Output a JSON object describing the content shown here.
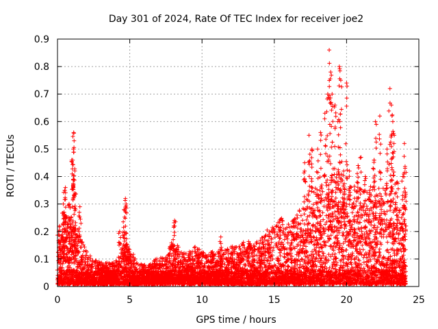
{
  "chart_data": {
    "type": "scatter",
    "title": "Day 301 of 2024, Rate Of TEC Index for receiver joe2",
    "xlabel": "GPS time / hours",
    "ylabel": "ROTI / TECUs",
    "xlim": [
      0,
      25
    ],
    "ylim": [
      0,
      0.9
    ],
    "xticks": [
      0,
      5,
      10,
      15,
      20,
      25
    ],
    "yticks": [
      0,
      0.1,
      0.2,
      0.3,
      0.4,
      0.5,
      0.6,
      0.7,
      0.8,
      0.9
    ],
    "xtick_labels": [
      "0",
      "5",
      "10",
      "15",
      "20",
      "25"
    ],
    "ytick_labels": [
      "0",
      "0.1",
      "0.2",
      "0.3",
      "0.4",
      "0.5",
      "0.6",
      "0.7",
      "0.8",
      "0.9"
    ],
    "grid": true,
    "marker": "plus",
    "color": "#ff0000",
    "envelope": {
      "description_x_hours": [
        0,
        0.5,
        1,
        1.5,
        2,
        2.5,
        3,
        3.5,
        4,
        4.5,
        5,
        5.5,
        6,
        6.5,
        7,
        7.5,
        8,
        8.5,
        9,
        9.5,
        10,
        10.5,
        11,
        11.5,
        12,
        12.5,
        13,
        13.5,
        14,
        14.5,
        15,
        15.5,
        16,
        16.5,
        17,
        17.5,
        18,
        18.5,
        19,
        19.5,
        20,
        20.5,
        21,
        21.5,
        22,
        22.5,
        23,
        23.5,
        24
      ],
      "typical_max": [
        0.2,
        0.25,
        0.25,
        0.2,
        0.12,
        0.09,
        0.08,
        0.08,
        0.08,
        0.14,
        0.14,
        0.08,
        0.07,
        0.08,
        0.1,
        0.1,
        0.18,
        0.12,
        0.12,
        0.14,
        0.12,
        0.12,
        0.12,
        0.12,
        0.14,
        0.14,
        0.16,
        0.15,
        0.16,
        0.2,
        0.22,
        0.24,
        0.22,
        0.25,
        0.3,
        0.35,
        0.36,
        0.4,
        0.4,
        0.42,
        0.36,
        0.36,
        0.35,
        0.36,
        0.35,
        0.35,
        0.35,
        0.32,
        0.28
      ]
    },
    "spikes": [
      {
        "x": 0.15,
        "y": 0.22
      },
      {
        "x": 0.4,
        "y": 0.3
      },
      {
        "x": 0.5,
        "y": 0.35
      },
      {
        "x": 0.55,
        "y": 0.36
      },
      {
        "x": 0.8,
        "y": 0.3
      },
      {
        "x": 1.05,
        "y": 0.46
      },
      {
        "x": 1.1,
        "y": 0.5
      },
      {
        "x": 1.12,
        "y": 0.56
      },
      {
        "x": 1.15,
        "y": 0.53
      },
      {
        "x": 1.2,
        "y": 0.34
      },
      {
        "x": 1.55,
        "y": 0.29
      },
      {
        "x": 4.3,
        "y": 0.2
      },
      {
        "x": 4.6,
        "y": 0.28
      },
      {
        "x": 4.7,
        "y": 0.32
      },
      {
        "x": 4.75,
        "y": 0.3
      },
      {
        "x": 8.1,
        "y": 0.24
      },
      {
        "x": 11.3,
        "y": 0.18
      },
      {
        "x": 17.1,
        "y": 0.45
      },
      {
        "x": 17.4,
        "y": 0.55
      },
      {
        "x": 17.6,
        "y": 0.5
      },
      {
        "x": 18.0,
        "y": 0.5
      },
      {
        "x": 18.2,
        "y": 0.56
      },
      {
        "x": 18.5,
        "y": 0.63
      },
      {
        "x": 18.7,
        "y": 0.7
      },
      {
        "x": 18.8,
        "y": 0.86
      },
      {
        "x": 18.9,
        "y": 0.78
      },
      {
        "x": 19.0,
        "y": 0.7
      },
      {
        "x": 19.2,
        "y": 0.66
      },
      {
        "x": 19.4,
        "y": 0.6
      },
      {
        "x": 19.5,
        "y": 0.8
      },
      {
        "x": 19.6,
        "y": 0.75
      },
      {
        "x": 19.8,
        "y": 0.42
      },
      {
        "x": 20.0,
        "y": 0.74
      },
      {
        "x": 20.2,
        "y": 0.42
      },
      {
        "x": 20.8,
        "y": 0.44
      },
      {
        "x": 21.0,
        "y": 0.47
      },
      {
        "x": 21.3,
        "y": 0.4
      },
      {
        "x": 21.6,
        "y": 0.35
      },
      {
        "x": 21.9,
        "y": 0.46
      },
      {
        "x": 22.0,
        "y": 0.6
      },
      {
        "x": 22.3,
        "y": 0.62
      },
      {
        "x": 22.8,
        "y": 0.5
      },
      {
        "x": 23.0,
        "y": 0.72
      },
      {
        "x": 23.1,
        "y": 0.66
      },
      {
        "x": 23.2,
        "y": 0.6
      },
      {
        "x": 23.3,
        "y": 0.55
      },
      {
        "x": 23.5,
        "y": 0.38
      },
      {
        "x": 23.9,
        "y": 0.4
      },
      {
        "x": 24.0,
        "y": 0.52
      },
      {
        "x": 24.05,
        "y": 0.43
      }
    ]
  }
}
